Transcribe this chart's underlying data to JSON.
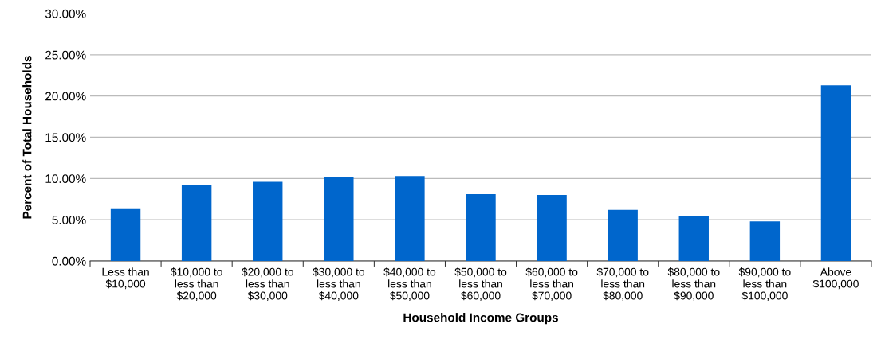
{
  "chart_data": {
    "type": "bar",
    "xlabel": "Household Income Groups",
    "ylabel": "Percent of Total Households",
    "categories": [
      "Less than\n$10,000",
      "$10,000 to\nless than\n$20,000",
      "$20,000 to\nless than\n$30,000",
      "$30,000 to\nless than\n$40,000",
      "$40,000 to\nless than\n$50,000",
      "$50,000 to\nless than\n$60,000",
      "$60,000 to\nless than\n$70,000",
      "$70,000 to\nless than\n$80,000",
      "$80,000 to\nless than\n$90,000",
      "$90,000 to\nless than\n$100,000",
      "Above\n$100,000"
    ],
    "values": [
      6.4,
      9.2,
      9.6,
      10.2,
      10.3,
      8.1,
      8.0,
      6.2,
      5.5,
      4.8,
      21.3
    ],
    "color": "#0066cc",
    "ylim": [
      0,
      30
    ],
    "yticks": [
      {
        "value": 0,
        "label": "0.00%"
      },
      {
        "value": 5,
        "label": "5.00%"
      },
      {
        "value": 10,
        "label": "10.00%"
      },
      {
        "value": 15,
        "label": "15.00%"
      },
      {
        "value": 20,
        "label": "20.00%"
      },
      {
        "value": 25,
        "label": "25.00%"
      },
      {
        "value": 30,
        "label": "30.00%"
      }
    ],
    "grid": "y"
  }
}
